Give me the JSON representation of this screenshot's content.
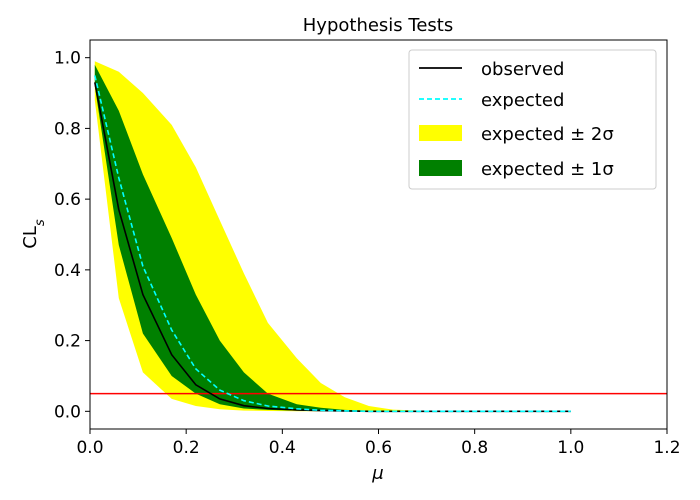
{
  "chart_data": {
    "type": "line",
    "title": "Hypothesis Tests",
    "xlabel": "μ",
    "ylabel_main": "CL",
    "ylabel_sub": "s",
    "xlim": [
      0.0,
      1.2
    ],
    "ylim": [
      -0.05,
      1.05
    ],
    "xticks": [
      "0.0",
      "0.2",
      "0.4",
      "0.6",
      "0.8",
      "1.0",
      "1.2"
    ],
    "yticks": [
      "0.0",
      "0.2",
      "0.4",
      "0.6",
      "0.8",
      "1.0"
    ],
    "x": [
      0.01,
      0.06,
      0.11,
      0.17,
      0.22,
      0.27,
      0.32,
      0.37,
      0.43,
      0.48,
      0.53,
      0.58,
      0.63,
      0.69,
      0.74,
      0.79,
      0.84,
      0.9,
      0.95,
      1.0
    ],
    "observed": {
      "name": "observed",
      "color": "#000000",
      "values": [
        0.93,
        0.57,
        0.33,
        0.16,
        0.075,
        0.035,
        0.016,
        0.008,
        0.004,
        0.002,
        0.001,
        0.0,
        0.0,
        0.0,
        0.0,
        0.0,
        0.0,
        0.0,
        0.0,
        0.0
      ]
    },
    "expected": {
      "name": "expected",
      "color": "#00ffff",
      "values": [
        0.95,
        0.66,
        0.41,
        0.23,
        0.12,
        0.06,
        0.03,
        0.015,
        0.007,
        0.003,
        0.0015,
        0.0,
        0.0,
        0.0,
        0.0,
        0.0,
        0.0,
        0.0,
        0.0,
        0.0
      ]
    },
    "band_2sigma": {
      "name": "expected ± 2σ",
      "color": "#ffff00",
      "upper": [
        0.99,
        0.96,
        0.9,
        0.81,
        0.69,
        0.54,
        0.39,
        0.25,
        0.15,
        0.08,
        0.04,
        0.015,
        0.005,
        0.002,
        0.0,
        0.0,
        0.0,
        0.0,
        0.0,
        0.0
      ],
      "lower": [
        0.88,
        0.32,
        0.11,
        0.035,
        0.015,
        0.006,
        0.002,
        0.001,
        0.0,
        0.0,
        0.0,
        0.0,
        0.0,
        0.0,
        0.0,
        0.0,
        0.0,
        0.0,
        0.0,
        0.0
      ]
    },
    "band_1sigma": {
      "name": "expected ± 1σ",
      "color": "#008000",
      "upper": [
        0.98,
        0.85,
        0.67,
        0.49,
        0.33,
        0.2,
        0.11,
        0.05,
        0.02,
        0.01,
        0.004,
        0.002,
        0.0,
        0.0,
        0.0,
        0.0,
        0.0,
        0.0,
        0.0,
        0.0
      ],
      "lower": [
        0.92,
        0.47,
        0.22,
        0.1,
        0.05,
        0.02,
        0.008,
        0.004,
        0.002,
        0.001,
        0.0,
        0.0,
        0.0,
        0.0,
        0.0,
        0.0,
        0.0,
        0.0,
        0.0,
        0.0
      ]
    },
    "threshold": {
      "value": 0.05,
      "color": "#ff0000"
    },
    "legend": {
      "placement": "top-right",
      "entries": [
        {
          "label": "observed",
          "kind": "line",
          "color": "#000000",
          "dash": "solid"
        },
        {
          "label": "expected",
          "kind": "line",
          "color": "#00ffff",
          "dash": "dashed"
        },
        {
          "label": "expected ± 2σ",
          "kind": "patch",
          "color": "#ffff00"
        },
        {
          "label": "expected ± 1σ",
          "kind": "patch",
          "color": "#008000"
        }
      ]
    },
    "grid": false
  }
}
